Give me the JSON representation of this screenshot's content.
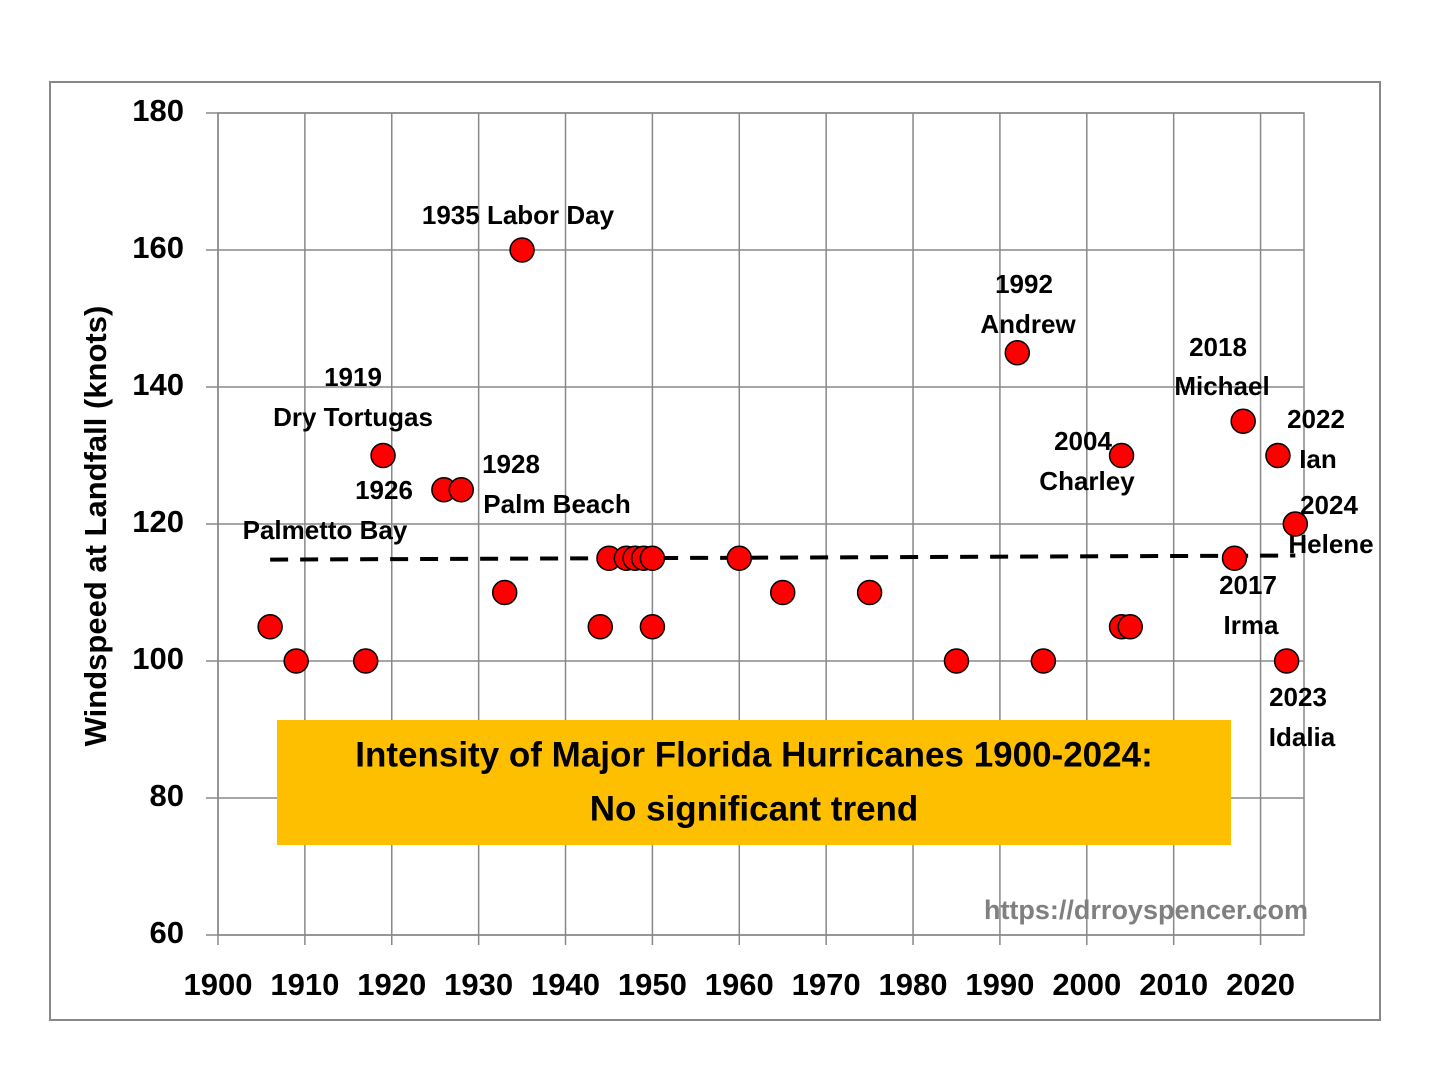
{
  "chart_data": {
    "type": "scatter",
    "y_label": "Windspeed at Landfall (knots)",
    "title": [
      "Intensity of Major Florida Hurricanes 1900-2024:",
      "No significant trend"
    ],
    "source": "https://drroyspencer.com",
    "points": {
      "color": "#ff0000",
      "x": [
        1906,
        1909,
        1917,
        1919,
        1926,
        1928,
        1933,
        1935,
        1944,
        1945,
        1947,
        1948,
        1949,
        1950,
        1950,
        1960,
        1965,
        1975,
        1985,
        1992,
        1995,
        2004,
        2004,
        2005,
        2017,
        2018,
        2022,
        2023,
        2024
      ],
      "values": [
        105,
        100,
        100,
        130,
        125,
        125,
        110,
        160,
        105,
        115,
        115,
        115,
        115,
        115,
        105,
        115,
        110,
        110,
        100,
        145,
        100,
        130,
        105,
        105,
        115,
        135,
        130,
        100,
        120
      ]
    },
    "trend_line": {
      "color": "#000000",
      "x": [
        1906,
        2024
      ],
      "values": [
        114.8,
        115.4
      ]
    },
    "annotations": [
      "1935 Labor Day",
      "1992",
      "Andrew",
      "1919",
      "Dry Tortugas",
      "1926",
      "1928",
      "Palm Beach",
      "Palmetto Bay",
      "2004",
      "Charley",
      "2018",
      "Michael",
      "2022",
      "Ian",
      "2024",
      "Helene",
      "2017",
      "Irma",
      "2023",
      "Idalia"
    ],
    "xlim": [
      1900,
      2025
    ],
    "ylim": [
      60,
      180
    ],
    "xticks": [
      1900,
      1910,
      1920,
      1930,
      1940,
      1950,
      1960,
      1970,
      1980,
      1990,
      2000,
      2010,
      2020
    ],
    "yticks": [
      60,
      80,
      100,
      120,
      140,
      160,
      180
    ],
    "grid": true
  }
}
